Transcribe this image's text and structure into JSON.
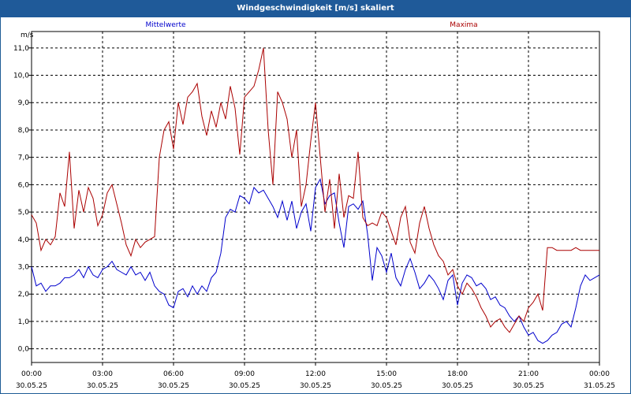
{
  "window": {
    "title": "Windgeschwindigkeit [m/s] skaliert"
  },
  "chart_data": {
    "type": "line",
    "title": "Windgeschwindigkeit [m/s] skaliert",
    "ylabel": "m/s",
    "ylim": [
      -0.5,
      11.6
    ],
    "xlim": [
      0,
      24
    ],
    "grid": true,
    "x_unit": "hours from 30.05.25 00:00",
    "y_ticks": [
      "0,0",
      "1,0",
      "2,0",
      "3,0",
      "4,0",
      "5,0",
      "6,0",
      "7,0",
      "8,0",
      "9,0",
      "10,0",
      "11,0"
    ],
    "x_ticks": [
      {
        "time": "00:00",
        "date": "30.05.25"
      },
      {
        "time": "03:00",
        "date": "30.05.25"
      },
      {
        "time": "06:00",
        "date": "30.05.25"
      },
      {
        "time": "09:00",
        "date": "30.05.25"
      },
      {
        "time": "12:00",
        "date": "30.05.25"
      },
      {
        "time": "15:00",
        "date": "30.05.25"
      },
      {
        "time": "18:00",
        "date": "30.05.25"
      },
      {
        "time": "21:00",
        "date": "30.05.25"
      },
      {
        "time": "00:00",
        "date": "31.05.25"
      }
    ],
    "series": [
      {
        "name": "Mittelwerte",
        "color": "#0000cc",
        "x": [
          0,
          0.2,
          0.4,
          0.6,
          0.8,
          1.0,
          1.2,
          1.4,
          1.6,
          1.8,
          2.0,
          2.2,
          2.4,
          2.6,
          2.8,
          3.0,
          3.2,
          3.4,
          3.6,
          3.8,
          4.0,
          4.2,
          4.4,
          4.6,
          4.8,
          5.0,
          5.2,
          5.4,
          5.6,
          5.8,
          6.0,
          6.2,
          6.4,
          6.6,
          6.8,
          7.0,
          7.2,
          7.4,
          7.6,
          7.8,
          8.0,
          8.2,
          8.4,
          8.6,
          8.8,
          9.0,
          9.2,
          9.4,
          9.6,
          9.8,
          10.0,
          10.2,
          10.4,
          10.6,
          10.8,
          11.0,
          11.2,
          11.4,
          11.6,
          11.8,
          12.0,
          12.2,
          12.4,
          12.6,
          12.8,
          13.0,
          13.2,
          13.4,
          13.6,
          13.8,
          14.0,
          14.2,
          14.4,
          14.6,
          14.8,
          15.0,
          15.2,
          15.4,
          15.6,
          15.8,
          16.0,
          16.2,
          16.4,
          16.6,
          16.8,
          17.0,
          17.2,
          17.4,
          17.6,
          17.8,
          18.0,
          18.2,
          18.4,
          18.6,
          18.8,
          19.0,
          19.2,
          19.4,
          19.6,
          19.8,
          20.0,
          20.2,
          20.4,
          20.6,
          20.8,
          21.0,
          21.2,
          21.4,
          21.6,
          21.8,
          22.0,
          22.2,
          22.4,
          22.6,
          22.8,
          23.0,
          23.2,
          23.4,
          23.6,
          23.8,
          24.0
        ],
        "values": [
          3.0,
          2.3,
          2.4,
          2.1,
          2.3,
          2.3,
          2.4,
          2.6,
          2.6,
          2.7,
          2.9,
          2.6,
          3.0,
          2.7,
          2.6,
          2.9,
          3.0,
          3.2,
          2.9,
          2.8,
          2.7,
          3.0,
          2.7,
          2.8,
          2.5,
          2.8,
          2.3,
          2.1,
          2.0,
          1.6,
          1.5,
          2.1,
          2.2,
          1.9,
          2.3,
          2.0,
          2.3,
          2.1,
          2.6,
          2.8,
          3.5,
          4.8,
          5.1,
          5.0,
          5.6,
          5.5,
          5.3,
          5.9,
          5.7,
          5.8,
          5.5,
          5.2,
          4.8,
          5.4,
          4.7,
          5.4,
          4.4,
          5.0,
          5.3,
          4.3,
          5.9,
          6.2,
          5.3,
          5.6,
          5.7,
          4.6,
          3.7,
          5.2,
          5.3,
          5.1,
          5.4,
          4.2,
          2.5,
          3.7,
          3.4,
          2.8,
          3.5,
          2.6,
          2.3,
          2.9,
          3.3,
          2.8,
          2.2,
          2.4,
          2.7,
          2.5,
          2.2,
          1.8,
          2.5,
          2.7,
          1.6,
          2.4,
          2.7,
          2.6,
          2.3,
          2.4,
          2.2,
          1.8,
          1.9,
          1.6,
          1.5,
          1.2,
          1.0,
          1.2,
          0.8,
          0.5,
          0.6,
          0.3,
          0.2,
          0.3,
          0.5,
          0.6,
          0.9,
          1.0,
          0.8,
          1.5,
          2.3,
          2.7,
          2.5,
          2.6,
          2.7
        ]
      },
      {
        "name": "Maxima",
        "color": "#aa0000",
        "x": [
          0,
          0.2,
          0.4,
          0.6,
          0.8,
          1.0,
          1.2,
          1.4,
          1.6,
          1.8,
          2.0,
          2.2,
          2.4,
          2.6,
          2.8,
          3.0,
          3.2,
          3.4,
          3.6,
          3.8,
          4.0,
          4.2,
          4.4,
          4.6,
          4.8,
          5.0,
          5.2,
          5.4,
          5.6,
          5.8,
          6.0,
          6.2,
          6.4,
          6.6,
          6.8,
          7.0,
          7.2,
          7.4,
          7.6,
          7.8,
          8.0,
          8.2,
          8.4,
          8.6,
          8.8,
          9.0,
          9.2,
          9.4,
          9.6,
          9.8,
          10.0,
          10.2,
          10.4,
          10.6,
          10.8,
          11.0,
          11.2,
          11.4,
          11.6,
          11.8,
          12.0,
          12.2,
          12.4,
          12.6,
          12.8,
          13.0,
          13.2,
          13.4,
          13.6,
          13.8,
          14.0,
          14.2,
          14.4,
          14.6,
          14.8,
          15.0,
          15.2,
          15.4,
          15.6,
          15.8,
          16.0,
          16.2,
          16.4,
          16.6,
          16.8,
          17.0,
          17.2,
          17.4,
          17.6,
          17.8,
          18.0,
          18.2,
          18.4,
          18.6,
          18.8,
          19.0,
          19.2,
          19.4,
          19.6,
          19.8,
          20.0,
          20.2,
          20.4,
          20.6,
          20.8,
          21.0,
          21.2,
          21.4,
          21.6,
          21.8,
          22.0,
          22.2,
          22.4,
          22.6,
          22.8,
          23.0,
          23.2,
          23.4,
          23.6,
          23.8,
          24.0
        ],
        "values": [
          4.9,
          4.6,
          3.6,
          4.0,
          3.8,
          4.1,
          5.7,
          5.2,
          7.2,
          4.4,
          5.8,
          5.0,
          5.9,
          5.5,
          4.5,
          4.9,
          5.7,
          6.0,
          5.3,
          4.6,
          3.8,
          3.4,
          4.0,
          3.7,
          3.9,
          4.0,
          4.1,
          7.0,
          8.0,
          8.3,
          7.3,
          9.0,
          8.2,
          9.2,
          9.4,
          9.7,
          8.5,
          7.8,
          8.7,
          8.1,
          9.0,
          8.4,
          9.6,
          8.8,
          7.1,
          9.2,
          9.4,
          9.6,
          10.2,
          11.0,
          8.0,
          6.0,
          9.4,
          9.0,
          8.4,
          7.0,
          8.0,
          5.2,
          6.0,
          7.6,
          9.0,
          7.0,
          5.0,
          6.2,
          4.4,
          6.4,
          4.8,
          5.6,
          5.5,
          7.2,
          4.8,
          4.5,
          4.6,
          4.5,
          5.0,
          4.8,
          4.3,
          3.8,
          4.8,
          5.2,
          3.9,
          3.5,
          4.6,
          5.2,
          4.4,
          3.8,
          3.4,
          3.2,
          2.7,
          2.9,
          2.3,
          2.0,
          2.4,
          2.2,
          1.9,
          1.5,
          1.2,
          0.8,
          1.0,
          1.1,
          0.8,
          0.6,
          0.9,
          1.2,
          1.0,
          1.5,
          1.7,
          2.0,
          1.4,
          3.7,
          3.7,
          3.6,
          3.6,
          3.6,
          3.6,
          3.7,
          3.6,
          3.6,
          3.6,
          3.6,
          3.6
        ]
      }
    ]
  }
}
